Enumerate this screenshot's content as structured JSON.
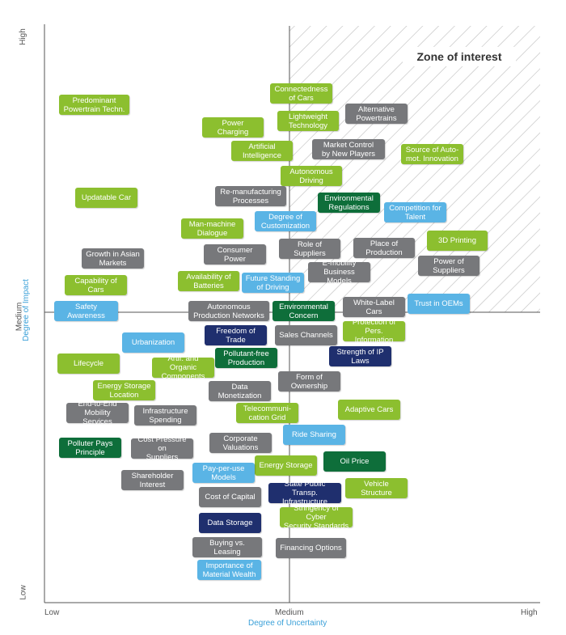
{
  "zone_label": "Zone of interest",
  "axes": {
    "x_low": "Low",
    "x_medium": "Medium",
    "x_high": "High",
    "x_title": "Degree of Uncertainty",
    "y_low": "Low",
    "y_medium": "Medium",
    "y_high": "High",
    "y_title": "Degree of Impact"
  },
  "colors": {
    "lime": "#8cbf2f",
    "gray": "#77787b",
    "blue": "#5ab4e5",
    "darkgreen": "#0e6e3a",
    "navy": "#1f2f6e",
    "grid": "#555555",
    "hatch": "#bdbdbd"
  },
  "items": [
    {
      "label": "Predominant\nPowertrain Techn.",
      "color": "lime"
    },
    {
      "label": "Connectedness\nof Cars",
      "color": "lime"
    },
    {
      "label": "Alternative\nPowertrains",
      "color": "gray"
    },
    {
      "label": "Power Charging",
      "color": "lime"
    },
    {
      "label": "Lightweight\nTechnology",
      "color": "lime"
    },
    {
      "label": "Artificial\nIntelligence",
      "color": "lime"
    },
    {
      "label": "Market Control\nby New Players",
      "color": "gray"
    },
    {
      "label": "Source of Auto-\nmot. Innovation",
      "color": "lime"
    },
    {
      "label": "Autonomous\nDriving",
      "color": "lime"
    },
    {
      "label": "Updatable Car",
      "color": "lime"
    },
    {
      "label": "Re-manufacturing\nProcesses",
      "color": "gray"
    },
    {
      "label": "Environmental\nRegulations",
      "color": "darkgreen"
    },
    {
      "label": "Competition for\nTalent",
      "color": "blue"
    },
    {
      "label": "Degree of\nCustomization",
      "color": "blue"
    },
    {
      "label": "Man-machine\nDialogue",
      "color": "lime"
    },
    {
      "label": "3D Printing",
      "color": "lime"
    },
    {
      "label": "Role of Suppliers",
      "color": "gray"
    },
    {
      "label": "Place of\nProduction",
      "color": "gray"
    },
    {
      "label": "Growth in Asian\nMarkets",
      "color": "gray"
    },
    {
      "label": "Consumer Power",
      "color": "gray"
    },
    {
      "label": "Power of\nSuppliers",
      "color": "gray"
    },
    {
      "label": "E-mobility\nBusiness Models",
      "color": "gray"
    },
    {
      "label": "Availability of\nBatteries",
      "color": "lime"
    },
    {
      "label": "Future Standing\nof Driving",
      "color": "blue"
    },
    {
      "label": "Capability of Cars",
      "color": "lime"
    },
    {
      "label": "Safety Awareness",
      "color": "blue"
    },
    {
      "label": "Autonomous\nProduction Networks",
      "color": "gray"
    },
    {
      "label": "Environmental\nConcern",
      "color": "darkgreen"
    },
    {
      "label": "White-Label Cars",
      "color": "gray"
    },
    {
      "label": "Trust in OEMs",
      "color": "blue"
    },
    {
      "label": "Protection of\nPers. Information",
      "color": "lime"
    },
    {
      "label": "Freedom of Trade",
      "color": "navy"
    },
    {
      "label": "Sales Channels",
      "color": "gray"
    },
    {
      "label": "Urbanization",
      "color": "blue"
    },
    {
      "label": "Lifecycle",
      "color": "lime"
    },
    {
      "label": "Artif. and Organic\nComponents",
      "color": "lime"
    },
    {
      "label": "Pollutant-free\nProduction",
      "color": "darkgreen"
    },
    {
      "label": "Strength of IP\nLaws",
      "color": "navy"
    },
    {
      "label": "Form of\nOwnership",
      "color": "gray"
    },
    {
      "label": "Energy Storage\nLocation",
      "color": "lime"
    },
    {
      "label": "Data\nMonetization",
      "color": "gray"
    },
    {
      "label": "End-to-End\nMobility Services",
      "color": "gray"
    },
    {
      "label": "Infrastructure\nSpending",
      "color": "gray"
    },
    {
      "label": "Telecommuni-\ncation Grid",
      "color": "lime"
    },
    {
      "label": "Adaptive Cars",
      "color": "lime"
    },
    {
      "label": "Ride Sharing",
      "color": "blue"
    },
    {
      "label": "Polluter Pays\nPrinciple",
      "color": "darkgreen"
    },
    {
      "label": "Cost Pressure on\nSuppliers",
      "color": "gray"
    },
    {
      "label": "Corporate\nValuations",
      "color": "gray"
    },
    {
      "label": "Energy Storage",
      "color": "lime"
    },
    {
      "label": "Oil Price",
      "color": "darkgreen"
    },
    {
      "label": "Shareholder\nInterest",
      "color": "gray"
    },
    {
      "label": "Pay-per-use\nModels",
      "color": "blue"
    },
    {
      "label": "Cost of Capital",
      "color": "gray"
    },
    {
      "label": "State Public Transp.\nInfrastructure",
      "color": "navy"
    },
    {
      "label": "Vehicle Structure",
      "color": "lime"
    },
    {
      "label": "Stringency of Cyber\nSecurity Standards",
      "color": "lime"
    },
    {
      "label": "Data Storage",
      "color": "navy"
    },
    {
      "label": "Buying vs. Leasing",
      "color": "gray"
    },
    {
      "label": "Financing Options",
      "color": "gray"
    },
    {
      "label": "Importance of\nMaterial Wealth",
      "color": "blue"
    }
  ]
}
